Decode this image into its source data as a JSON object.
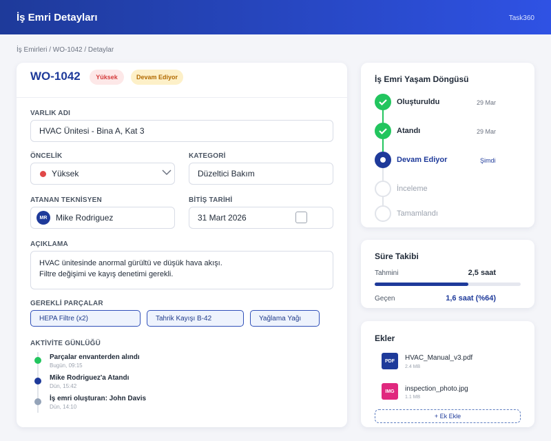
{
  "header": {
    "title": "İş Emri Detayları",
    "brand": "Task360"
  },
  "breadcrumb": "İş Emirleri / WO-1042 / Detaylar",
  "order": {
    "id": "WO-1042",
    "badges": [
      "Yüksek",
      "Devam Ediyor"
    ]
  },
  "form": {
    "asset_label": "VARLIK ADI",
    "asset": "HVAC Ünitesi - Bina A, Kat 3",
    "priority_label": "ÖNCELİK",
    "priority": "Yüksek",
    "category_label": "KATEGORİ",
    "category": "Düzeltici Bakım",
    "tech_label": "ATANAN TEKNİSYEN",
    "tech_initials": "MR",
    "tech": "Mike Rodriguez",
    "due_label": "BİTİŞ TARİHİ",
    "due": "31 Mart 2026",
    "desc_label": "AÇIKLAMA",
    "desc_lines": [
      "HVAC ünitesinde anormal gürültü ve düşük hava akışı.",
      "Filtre değişimi ve kayış denetimi gerekli."
    ],
    "parts_label": "GEREKLİ PARÇALAR",
    "parts": [
      "HEPA Filtre (x2)",
      "Tahrik Kayışı B-42",
      "Yağlama Yağı"
    ]
  },
  "activity": {
    "label": "AKTİVİTE GÜNLÜĞÜ",
    "items": [
      {
        "text": "Parçalar envanterden alındı",
        "time": "Bugün, 09:15"
      },
      {
        "text": "Mike Rodriguez'a Atandı",
        "time": "Dün, 15:42"
      },
      {
        "text": "İş emri oluşturan: John Davis",
        "time": "Dün, 14:10"
      }
    ]
  },
  "lifecycle": {
    "title": "İş Emri Yaşam Döngüsü",
    "steps": [
      {
        "label": "Oluşturuldu",
        "date": "29 Mar"
      },
      {
        "label": "Atandı",
        "date": "29 Mar"
      },
      {
        "label": "Devam Ediyor",
        "date": "Şimdi"
      },
      {
        "label": "İnceleme"
      },
      {
        "label": "Tamamlandı"
      }
    ]
  },
  "time": {
    "title": "Süre Takibi",
    "estimated_label": "Tahmini",
    "estimated": "2,5 saat",
    "spent_label": "Geçen",
    "spent": "1,6 saat (%64)",
    "progress": 64
  },
  "attachments": {
    "title": "Ekler",
    "files": [
      {
        "icon": "PDF",
        "name": "HVAC_Manual_v3.pdf",
        "size": "2.4 MB"
      },
      {
        "icon": "IMG",
        "name": "inspection_photo.jpg",
        "size": "1.1 MB"
      }
    ],
    "add": "+ Ek Ekle"
  }
}
